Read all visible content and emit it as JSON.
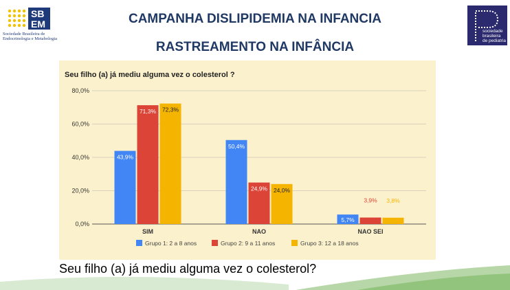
{
  "header": {
    "title_line1": "CAMPANHA DISLIPIDEMIA NA INFANCIA",
    "title_line2": "RASTREAMENTO NA INFÂNCIA",
    "left_logo": {
      "mark_top": "SB",
      "mark_bottom": "EM",
      "caption": "Sociedade Brasileira de Endocrinologia e Metabologia"
    },
    "right_logo": {
      "caption": "sociedade brasileira de pediatria"
    }
  },
  "caption": "Seu filho (a) já mediu alguma vez o colesterol?",
  "colors": {
    "series": [
      "#4285f4",
      "#db4437",
      "#f4b400"
    ],
    "panel": "#fbf1cc",
    "title": "#203864"
  },
  "chart_data": {
    "type": "bar",
    "title": "Seu filho (a) já mediu alguma vez o colesterol ?",
    "categories": [
      "SIM",
      "NAO",
      "NAO SEI"
    ],
    "series": [
      {
        "name": "Grupo 1: 2 a 8 anos",
        "values": [
          43.9,
          50.4,
          5.7
        ],
        "labels": [
          "43,9%",
          "50,4%",
          "5,7%"
        ]
      },
      {
        "name": "Grupo 2: 9 a 11 anos",
        "values": [
          71.3,
          24.9,
          3.9
        ],
        "labels": [
          "71,3%",
          "24,9%",
          "3,9%"
        ]
      },
      {
        "name": "Grupo 3: 12 a 18 anos",
        "values": [
          72.3,
          24.0,
          3.8
        ],
        "labels": [
          "72,3%",
          "24,0%",
          "3,8%"
        ]
      }
    ],
    "ylim": [
      0,
      80
    ],
    "yticks": [
      "0,0%",
      "20,0%",
      "40,0%",
      "60,0%",
      "80,0%"
    ],
    "grid": true,
    "legend": "bottom"
  }
}
